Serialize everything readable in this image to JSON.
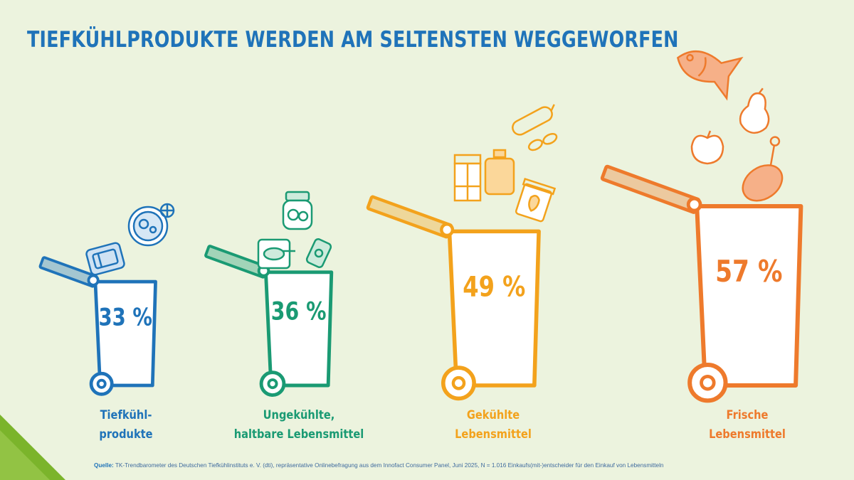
{
  "title": "TIEFKÜHLPRODUKTE WERDEN AM SELTENSTEN WEGGEWORFEN",
  "source": {
    "label": "Quelle:",
    "text": "TK-Trendbarometer des Deutschen Tiefkühlinstituts e. V. (dti), repräsentative Onlinebefragung aus dem Innofact Consumer Panel, Juni 2025, N = 1.016 Einkaufs(mit-)entscheider für den Einkauf von Lebensmitteln"
  },
  "colors": {
    "background": "#ecf3de",
    "title": "#1f73b9",
    "tiefkuehl": "#1f73b9",
    "ungekuehlt": "#1a9a73",
    "gekuehlt": "#f3a21c",
    "frisch": "#ee7a2c",
    "corner": "#7bb42b"
  },
  "chart_data": {
    "type": "bar",
    "unit": "%",
    "categories": [
      "Tiefkühlprodukte",
      "Ungekühlte, haltbare Lebensmittel",
      "Gekühlte Lebensmittel",
      "Frische Lebensmittel"
    ],
    "values": [
      33,
      36,
      49,
      57
    ],
    "value_labels": [
      "33 %",
      "36 %",
      "49 %",
      "57 %"
    ],
    "category_label_lines": [
      [
        "Tiefkühl-",
        "produkte"
      ],
      [
        "Ungekühlte,",
        "haltbare Lebensmittel"
      ],
      [
        "Gekühlte",
        "Lebensmittel"
      ],
      [
        "Frische",
        "Lebensmittel"
      ]
    ],
    "series_colors": [
      "#1f73b9",
      "#1a9a73",
      "#f3a21c",
      "#ee7a2c"
    ],
    "icons": [
      [
        "frozen-tray-icon",
        "frozen-meal-plate-icon"
      ],
      [
        "canned-fish-icon",
        "preserving-jar-icon",
        "soda-can-icon"
      ],
      [
        "milk-carton-icon",
        "juice-bottle-icon",
        "yogurt-cup-icon",
        "salami-icon"
      ],
      [
        "fish-icon",
        "pear-icon",
        "apple-icon",
        "ham-leg-icon"
      ]
    ]
  }
}
